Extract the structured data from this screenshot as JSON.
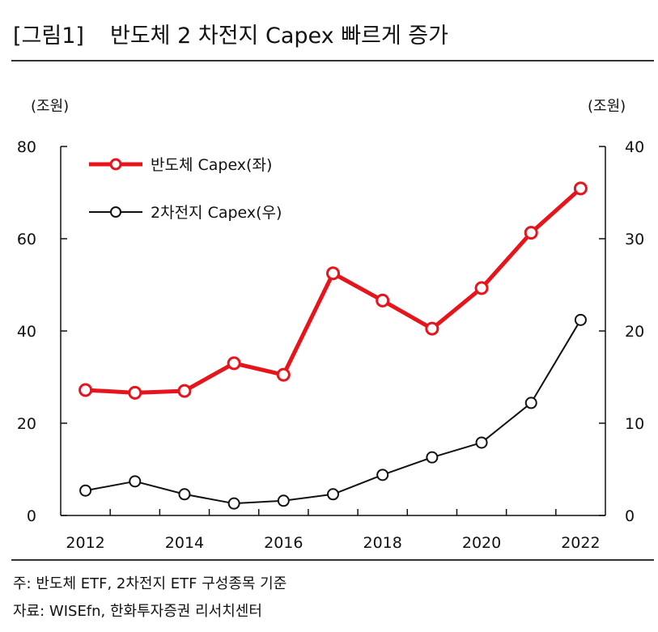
{
  "header": {
    "figure_label": "[그림1]",
    "title": "반도체 2 차전지 Capex 빠르게 증가"
  },
  "notes": {
    "note": "주: 반도체 ETF, 2차전지 ETF 구성종목 기준",
    "source": "자료: WISEfn, 한화투자증권 리서치센터"
  },
  "colors": {
    "semiconductor": "#e8141b",
    "battery": "#111111",
    "axis": "#111111"
  },
  "chart_data": {
    "type": "line",
    "title": "반도체 2 차전지 Capex 빠르게 증가",
    "x_ticks": [
      "2012",
      "2014",
      "2016",
      "2018",
      "2020",
      "2022"
    ],
    "x_range": [
      2011.75,
      2022.75
    ],
    "ylabel_left": "(조원)",
    "ylabel_right": "(조원)",
    "ylim_left": [
      0,
      80
    ],
    "ylim_right": [
      0,
      40
    ],
    "yticks_left": [
      "0",
      "20",
      "40",
      "60",
      "80"
    ],
    "yticks_right": [
      "0",
      "10",
      "20",
      "30",
      "40"
    ],
    "grid": false,
    "legend_position": "top-left",
    "series": [
      {
        "name": "반도체  Capex(좌)",
        "axis": "left",
        "color": "#e8141b",
        "x": [
          2012.25,
          2013.25,
          2014.25,
          2015.25,
          2016.25,
          2017.25,
          2018.25,
          2019.25,
          2020.25,
          2021.25,
          2022.25
        ],
        "values": [
          27.2,
          26.6,
          27.0,
          33.0,
          30.5,
          52.5,
          46.6,
          40.5,
          49.3,
          61.3,
          70.9
        ]
      },
      {
        "name": "2차전지  Capex(우)",
        "axis": "right",
        "color": "#111111",
        "x": [
          2012.25,
          2013.25,
          2014.25,
          2015.25,
          2016.25,
          2017.25,
          2018.25,
          2019.25,
          2020.25,
          2021.25,
          2022.25
        ],
        "values": [
          2.7,
          3.7,
          2.3,
          1.3,
          1.6,
          2.3,
          4.4,
          6.3,
          7.9,
          12.2,
          21.2
        ]
      }
    ]
  }
}
